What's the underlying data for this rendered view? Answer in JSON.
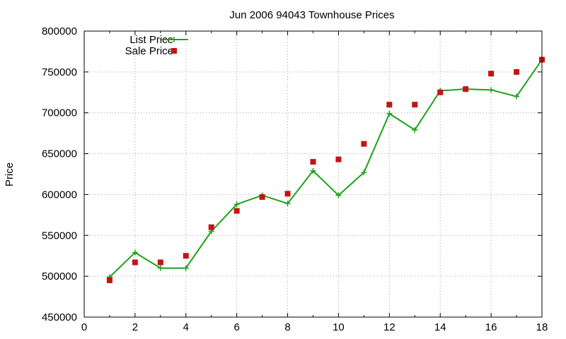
{
  "chart_data": {
    "type": "line",
    "title": "Jun 2006 94043 Townhouse Prices",
    "xlabel": "",
    "ylabel": "Price",
    "xlim": [
      0,
      18
    ],
    "ylim": [
      450000,
      800000
    ],
    "xticks": [
      0,
      2,
      4,
      6,
      8,
      10,
      12,
      14,
      16,
      18
    ],
    "yticks": [
      450000,
      500000,
      550000,
      600000,
      650000,
      700000,
      750000,
      800000
    ],
    "grid": true,
    "legend_position": "top-left",
    "series": [
      {
        "name": "List Price",
        "type": "line",
        "marker": "plus",
        "color": "#1aa31a",
        "x": [
          1,
          2,
          3,
          4,
          5,
          6,
          7,
          8,
          9,
          10,
          11,
          12,
          13,
          14,
          15,
          16,
          17,
          18
        ],
        "values": [
          499000,
          529000,
          510000,
          510000,
          555000,
          588000,
          599000,
          589000,
          629000,
          599000,
          627000,
          699000,
          679000,
          727000,
          729000,
          728000,
          720000,
          765000
        ]
      },
      {
        "name": "Sale Price",
        "type": "scatter",
        "marker": "square",
        "color": "#c41414",
        "x": [
          1,
          2,
          3,
          4,
          5,
          6,
          7,
          8,
          9,
          10,
          11,
          12,
          13,
          14,
          15,
          16,
          17,
          18
        ],
        "values": [
          495000,
          517000,
          517000,
          525000,
          560000,
          580000,
          597000,
          601000,
          640000,
          643000,
          662000,
          710000,
          710000,
          725000,
          729000,
          748000,
          750000,
          765000
        ]
      }
    ]
  }
}
